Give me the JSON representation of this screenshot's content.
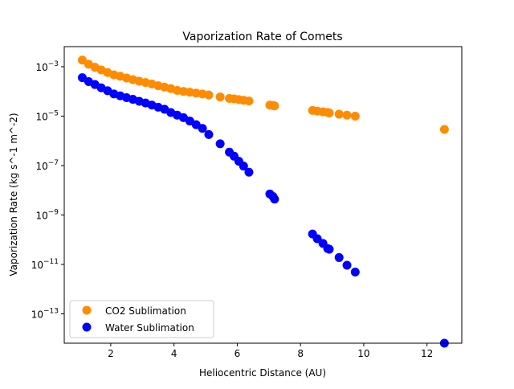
{
  "chart_data": {
    "type": "scatter",
    "title": "Vaporization Rate of Comets",
    "xlabel": "Heliocentric Distance (AU)",
    "ylabel": "Vaporization Rate (kg s^-1 m^-2)",
    "xlim": [
      0.53,
      13.1
    ],
    "ylim": [
      6.5e-15,
      0.0065
    ],
    "yscale": "log",
    "xticks": [
      2,
      4,
      6,
      8,
      10,
      12
    ],
    "yticks": [
      -3,
      -5,
      -7,
      -9,
      -11,
      -13
    ],
    "ytick_base": "10",
    "grid": false,
    "legend": "lower-left",
    "x": [
      1.1,
      1.3,
      1.5,
      1.7,
      1.9,
      2.1,
      2.3,
      2.5,
      2.7,
      2.9,
      3.1,
      3.3,
      3.5,
      3.7,
      3.9,
      4.1,
      4.3,
      4.5,
      4.7,
      4.9,
      5.1,
      5.46,
      5.75,
      5.9,
      6.05,
      6.2,
      6.37,
      7.03,
      7.13,
      7.18,
      8.38,
      8.53,
      8.71,
      8.86,
      8.91,
      9.22,
      9.47,
      9.73,
      12.55
    ],
    "series": [
      {
        "name": "CO2 Sublimation",
        "color": "#ff8c00",
        "values": [
          0.00186,
          0.00126,
          0.00095,
          0.00074,
          0.00058,
          0.00047,
          0.00041,
          0.00035,
          0.0003,
          0.00026,
          0.00023,
          0.0002,
          0.00017,
          0.00015,
          0.00013,
          0.00011,
          0.0001,
          9.3e-05,
          8.5e-05,
          7.9e-05,
          7.2e-05,
          6e-05,
          5.2e-05,
          5e-05,
          4.7e-05,
          4.4e-05,
          4.1e-05,
          2.8e-05,
          2.7e-05,
          2.6e-05,
          1.7e-05,
          1.6e-05,
          1.5e-05,
          1.4e-05,
          1.35e-05,
          1.2e-05,
          1.1e-05,
          1e-05,
          2.9e-06
        ]
      },
      {
        "name": "Water Sublimation",
        "color": "#0000ff",
        "values": [
          0.00036,
          0.00025,
          0.00019,
          0.00014,
          0.000107,
          7.9e-05,
          6.6e-05,
          5.6e-05,
          4.8e-05,
          4e-05,
          3.4e-05,
          2.8e-05,
          2.3e-05,
          1.9e-05,
          1.4e-05,
          1.1e-05,
          8.7e-06,
          6.3e-06,
          4.5e-06,
          3.2e-06,
          1.8e-06,
          7.6e-07,
          3.5e-07,
          2.4e-07,
          1.5e-07,
          9.5e-08,
          5.4e-08,
          7.1e-09,
          5.6e-09,
          4.4e-09,
          1.7e-10,
          1.1e-10,
          7.1e-11,
          4.4e-11,
          4.1e-11,
          1.9e-11,
          9.3e-12,
          4.9e-12,
          6.5e-15
        ]
      }
    ]
  }
}
